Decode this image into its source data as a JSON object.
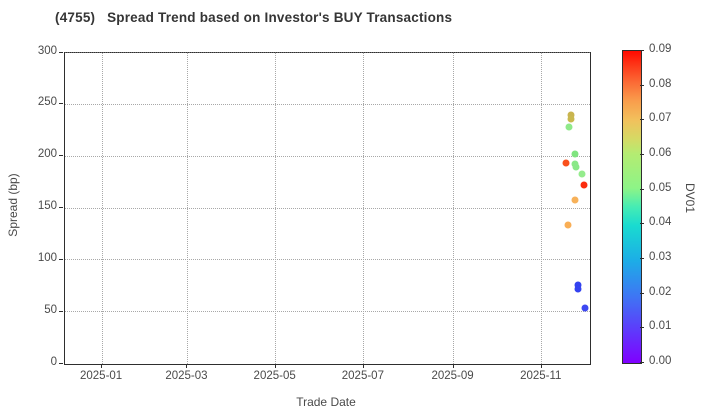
{
  "chart_data": {
    "type": "scatter",
    "title": "(4755)   Spread Trend based on Investor's BUY Transactions",
    "xlabel": "Trade Date",
    "ylabel": "Spread (bp)",
    "x_range": [
      "2024-12-06",
      "2025-12-04"
    ],
    "ylim": [
      0,
      300
    ],
    "grid": "dotted",
    "legend": "none",
    "x_ticks": [
      {
        "label": "2025-01",
        "date": "2025-01-01"
      },
      {
        "label": "2025-03",
        "date": "2025-03-01"
      },
      {
        "label": "2025-05",
        "date": "2025-05-01"
      },
      {
        "label": "2025-07",
        "date": "2025-07-01"
      },
      {
        "label": "2025-09",
        "date": "2025-09-01"
      },
      {
        "label": "2025-11",
        "date": "2025-11-01"
      }
    ],
    "y_ticks": [
      {
        "label": "0",
        "value": 0
      },
      {
        "label": "50",
        "value": 50
      },
      {
        "label": "100",
        "value": 100
      },
      {
        "label": "150",
        "value": 150
      },
      {
        "label": "200",
        "value": 200
      },
      {
        "label": "250",
        "value": 250
      },
      {
        "label": "300",
        "value": 300
      }
    ],
    "colorbar": {
      "label": "DV01",
      "vmin": 0.0,
      "vmax": 0.09,
      "ticks": [
        {
          "label": "0.00",
          "value": 0.0
        },
        {
          "label": "0.01",
          "value": 0.01
        },
        {
          "label": "0.02",
          "value": 0.02
        },
        {
          "label": "0.03",
          "value": 0.03
        },
        {
          "label": "0.04",
          "value": 0.04
        },
        {
          "label": "0.05",
          "value": 0.05
        },
        {
          "label": "0.06",
          "value": 0.06
        },
        {
          "label": "0.07",
          "value": 0.07
        },
        {
          "label": "0.08",
          "value": 0.08
        },
        {
          "label": "0.09",
          "value": 0.09
        }
      ],
      "gradient": [
        {
          "pos": 0.0,
          "color": "#8000ff"
        },
        {
          "pos": 0.11,
          "color": "#5c3dfb"
        },
        {
          "pos": 0.22,
          "color": "#3c79f3"
        },
        {
          "pos": 0.33,
          "color": "#1caee6"
        },
        {
          "pos": 0.44,
          "color": "#19dbd0"
        },
        {
          "pos": 0.5,
          "color": "#45ecb4"
        },
        {
          "pos": 0.56,
          "color": "#8df487"
        },
        {
          "pos": 0.67,
          "color": "#b4ec72"
        },
        {
          "pos": 0.72,
          "color": "#d6d964"
        },
        {
          "pos": 0.78,
          "color": "#f2c05c"
        },
        {
          "pos": 0.84,
          "color": "#f99d4c"
        },
        {
          "pos": 0.9,
          "color": "#fb6a35"
        },
        {
          "pos": 0.95,
          "color": "#fd3c1b"
        },
        {
          "pos": 1.0,
          "color": "#ff0a00"
        }
      ]
    },
    "points": [
      {
        "date": "2025-11-21",
        "spread": 240,
        "dv01": 0.06,
        "color": "#c9b44f"
      },
      {
        "date": "2025-11-21",
        "spread": 236,
        "dv01": 0.06,
        "color": "#c9b84f"
      },
      {
        "date": "2025-11-20",
        "spread": 228,
        "dv01": 0.05,
        "color": "#8fe98a"
      },
      {
        "date": "2025-11-24",
        "spread": 202,
        "dv01": 0.05,
        "color": "#7fe47f"
      },
      {
        "date": "2025-11-18",
        "spread": 193,
        "dv01": 0.08,
        "color": "#f9501c"
      },
      {
        "date": "2025-11-24",
        "spread": 192,
        "dv01": 0.05,
        "color": "#89e887"
      },
      {
        "date": "2025-11-25",
        "spread": 190,
        "dv01": 0.05,
        "color": "#89e887"
      },
      {
        "date": "2025-11-29",
        "spread": 183,
        "dv01": 0.05,
        "color": "#95ec8d"
      },
      {
        "date": "2025-11-30",
        "spread": 172,
        "dv01": 0.09,
        "color": "#fb2c0e"
      },
      {
        "date": "2025-11-24",
        "spread": 158,
        "dv01": 0.07,
        "color": "#f7b159"
      },
      {
        "date": "2025-11-19",
        "spread": 134,
        "dv01": 0.07,
        "color": "#f9ae55"
      },
      {
        "date": "2025-11-26",
        "spread": 76,
        "dv01": 0.01,
        "color": "#3342f0"
      },
      {
        "date": "2025-11-26",
        "spread": 72,
        "dv01": 0.01,
        "color": "#3342f0"
      },
      {
        "date": "2025-12-01",
        "spread": 54,
        "dv01": 0.01,
        "color": "#3d48f2"
      }
    ]
  }
}
